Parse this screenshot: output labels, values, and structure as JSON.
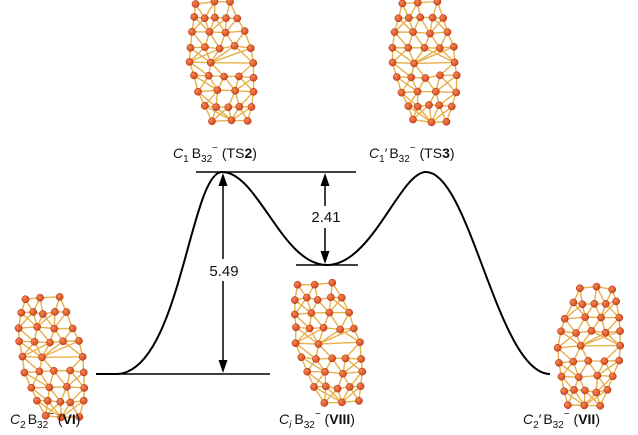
{
  "species": [
    {
      "id": "VI",
      "sym": "C",
      "sub": "2",
      "prime": "",
      "formula": "B",
      "fsub": "32",
      "charge": "−",
      "tag_pre": " (",
      "tag_bold": "VI",
      "tag_post": ")"
    },
    {
      "id": "TS2",
      "sym": "C",
      "sub": "1",
      "prime": "",
      "formula": "B",
      "fsub": "32",
      "charge": "−",
      "tag_pre": " (TS",
      "tag_bold": "2",
      "tag_post": ")"
    },
    {
      "id": "VIII",
      "sym": "C",
      "sub": "i",
      "prime": "",
      "formula": "B",
      "fsub": "32",
      "charge": "−",
      "tag_pre": " (",
      "tag_bold": "VIII",
      "tag_post": ")"
    },
    {
      "id": "TS3",
      "sym": "C",
      "sub": "1",
      "prime": "′",
      "formula": "B",
      "fsub": "32",
      "charge": "−",
      "tag_pre": " (TS",
      "tag_bold": "3",
      "tag_post": ")"
    },
    {
      "id": "VII",
      "sym": "C",
      "sub": "2",
      "prime": "′",
      "formula": "B",
      "fsub": "32",
      "charge": "−",
      "tag_pre": " (",
      "tag_bold": "VII",
      "tag_post": ")"
    }
  ],
  "energy_gaps": [
    {
      "value": "5.49",
      "from": "VI",
      "to": "TS2"
    },
    {
      "value": "2.41",
      "from": "VIII",
      "to": "TS2"
    }
  ],
  "colors": {
    "atom": "#d9461c",
    "atom_highlight": "#f08a56",
    "bond": "#e8b04a",
    "curve": "#000000"
  }
}
